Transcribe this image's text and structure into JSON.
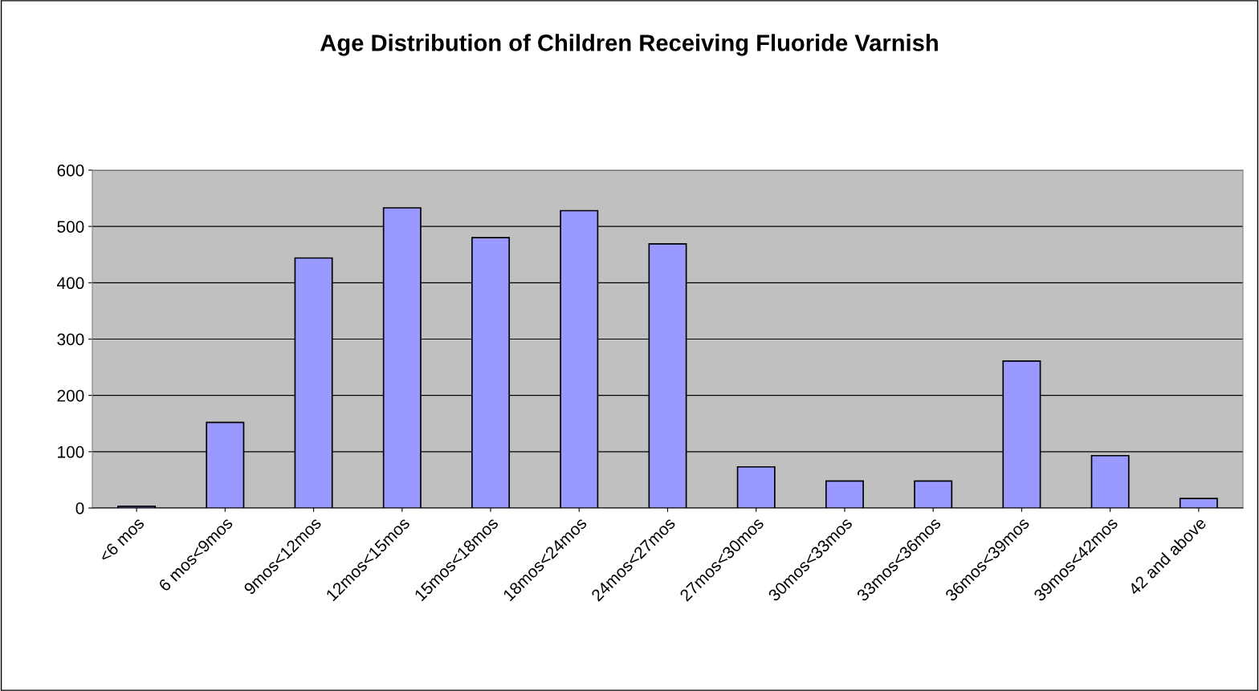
{
  "chart_data": {
    "type": "bar",
    "title": "Age Distribution of Children Receiving Fluoride Varnish",
    "categories": [
      "<6 mos",
      "6 mos<9mos",
      "9mos<12mos",
      "12mos<15mos",
      "15mos<18mos",
      "18mos<24mos",
      "24mos<27mos",
      "27mos<30mos",
      "30mos<33mos",
      "33mos<36mos",
      "36mos<39mos",
      "39mos<42mos",
      "42 and above"
    ],
    "values": [
      3,
      152,
      444,
      533,
      480,
      528,
      469,
      73,
      48,
      48,
      261,
      93,
      17
    ],
    "color": "#9999ff",
    "ylim": [
      0,
      600
    ],
    "yticks": [
      0,
      100,
      200,
      300,
      400,
      500,
      600
    ],
    "grid": "y"
  }
}
